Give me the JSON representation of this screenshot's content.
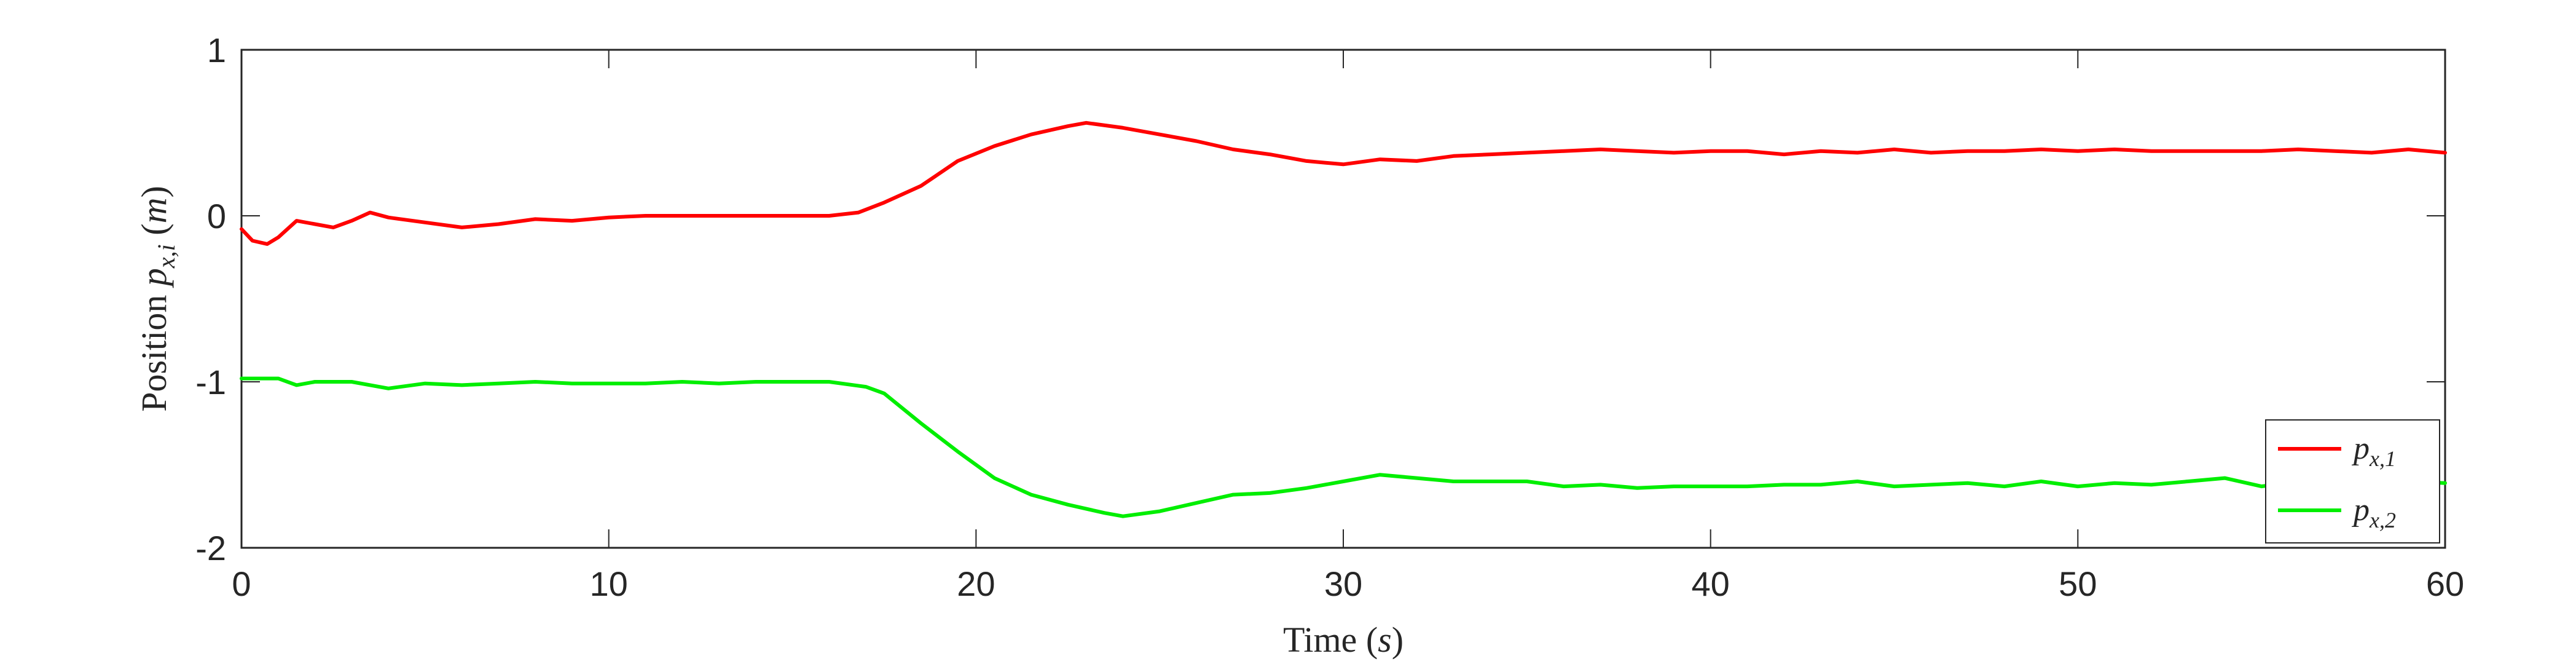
{
  "chart_data": {
    "type": "line",
    "xlabel": "Time (s)",
    "ylabel": "Position p_{x,i} (m)",
    "xlim": [
      0,
      60
    ],
    "ylim": [
      -2,
      1
    ],
    "xticks": [
      0,
      10,
      20,
      30,
      40,
      50,
      60
    ],
    "xtick_labels": [
      "0",
      "10",
      "20",
      "30",
      "40",
      "50",
      "60"
    ],
    "yticks": [
      -2,
      -1,
      0,
      1
    ],
    "ytick_labels": [
      "-2",
      "-1",
      "0",
      "1"
    ],
    "grid": false,
    "legend_position": "bottom-right",
    "series": [
      {
        "name": "p_{x,1}",
        "color": "#ff0000",
        "x": [
          0,
          0.3,
          0.7,
          1.0,
          1.5,
          2.0,
          2.5,
          3.0,
          3.5,
          4.0,
          5.0,
          6.0,
          7.0,
          8.0,
          9.0,
          10.0,
          11.0,
          12.0,
          13.0,
          14.0,
          15.0,
          16.0,
          16.8,
          17.5,
          18.5,
          19.5,
          20.5,
          21.5,
          22.5,
          23.0,
          24.0,
          25.0,
          26.0,
          27.0,
          28.0,
          29.0,
          30.0,
          31.0,
          32.0,
          33.0,
          34.0,
          35.0,
          36.0,
          37.0,
          38.0,
          39.0,
          40.0,
          41.0,
          42.0,
          43.0,
          44.0,
          45.0,
          46.0,
          47.0,
          48.0,
          49.0,
          50.0,
          51.0,
          52.0,
          53.0,
          54.0,
          55.0,
          56.0,
          57.0,
          58.0,
          59.0,
          60.0
        ],
        "y": [
          -0.08,
          -0.15,
          -0.17,
          -0.13,
          -0.03,
          -0.05,
          -0.07,
          -0.03,
          0.02,
          -0.01,
          -0.04,
          -0.07,
          -0.05,
          -0.02,
          -0.03,
          -0.01,
          0.0,
          0.0,
          0.0,
          0.0,
          0.0,
          0.0,
          0.02,
          0.08,
          0.18,
          0.33,
          0.42,
          0.49,
          0.54,
          0.56,
          0.53,
          0.49,
          0.45,
          0.4,
          0.37,
          0.33,
          0.31,
          0.34,
          0.33,
          0.36,
          0.37,
          0.38,
          0.39,
          0.4,
          0.39,
          0.38,
          0.39,
          0.39,
          0.37,
          0.39,
          0.38,
          0.4,
          0.38,
          0.39,
          0.39,
          0.4,
          0.39,
          0.4,
          0.39,
          0.39,
          0.39,
          0.39,
          0.4,
          0.39,
          0.38,
          0.4,
          0.38
        ]
      },
      {
        "name": "p_{x,2}",
        "color": "#00ee00",
        "x": [
          0,
          1.0,
          1.5,
          2.0,
          3.0,
          4.0,
          5.0,
          6.0,
          7.0,
          8.0,
          9.0,
          10.0,
          11.0,
          12.0,
          13.0,
          14.0,
          15.0,
          16.0,
          17.0,
          17.5,
          18.5,
          19.5,
          20.5,
          21.5,
          22.5,
          23.5,
          24.0,
          25.0,
          26.0,
          27.0,
          28.0,
          29.0,
          30.0,
          31.0,
          32.0,
          33.0,
          34.0,
          35.0,
          36.0,
          37.0,
          38.0,
          39.0,
          40.0,
          41.0,
          42.0,
          43.0,
          44.0,
          45.0,
          46.0,
          47.0,
          48.0,
          49.0,
          50.0,
          51.0,
          52.0,
          53.0,
          54.0,
          55.0,
          56.0,
          57.0,
          58.0,
          59.0,
          60.0
        ],
        "y": [
          -0.98,
          -0.98,
          -1.02,
          -1.0,
          -1.0,
          -1.04,
          -1.01,
          -1.02,
          -1.01,
          -1.0,
          -1.01,
          -1.01,
          -1.01,
          -1.0,
          -1.01,
          -1.0,
          -1.0,
          -1.0,
          -1.03,
          -1.07,
          -1.25,
          -1.42,
          -1.58,
          -1.68,
          -1.74,
          -1.79,
          -1.81,
          -1.78,
          -1.73,
          -1.68,
          -1.67,
          -1.64,
          -1.6,
          -1.56,
          -1.58,
          -1.6,
          -1.6,
          -1.6,
          -1.63,
          -1.62,
          -1.64,
          -1.63,
          -1.63,
          -1.63,
          -1.62,
          -1.62,
          -1.6,
          -1.63,
          -1.62,
          -1.61,
          -1.63,
          -1.6,
          -1.63,
          -1.61,
          -1.62,
          -1.6,
          -1.58,
          -1.63,
          -1.6,
          -1.58,
          -1.6,
          -1.6,
          -1.61
        ]
      }
    ]
  }
}
